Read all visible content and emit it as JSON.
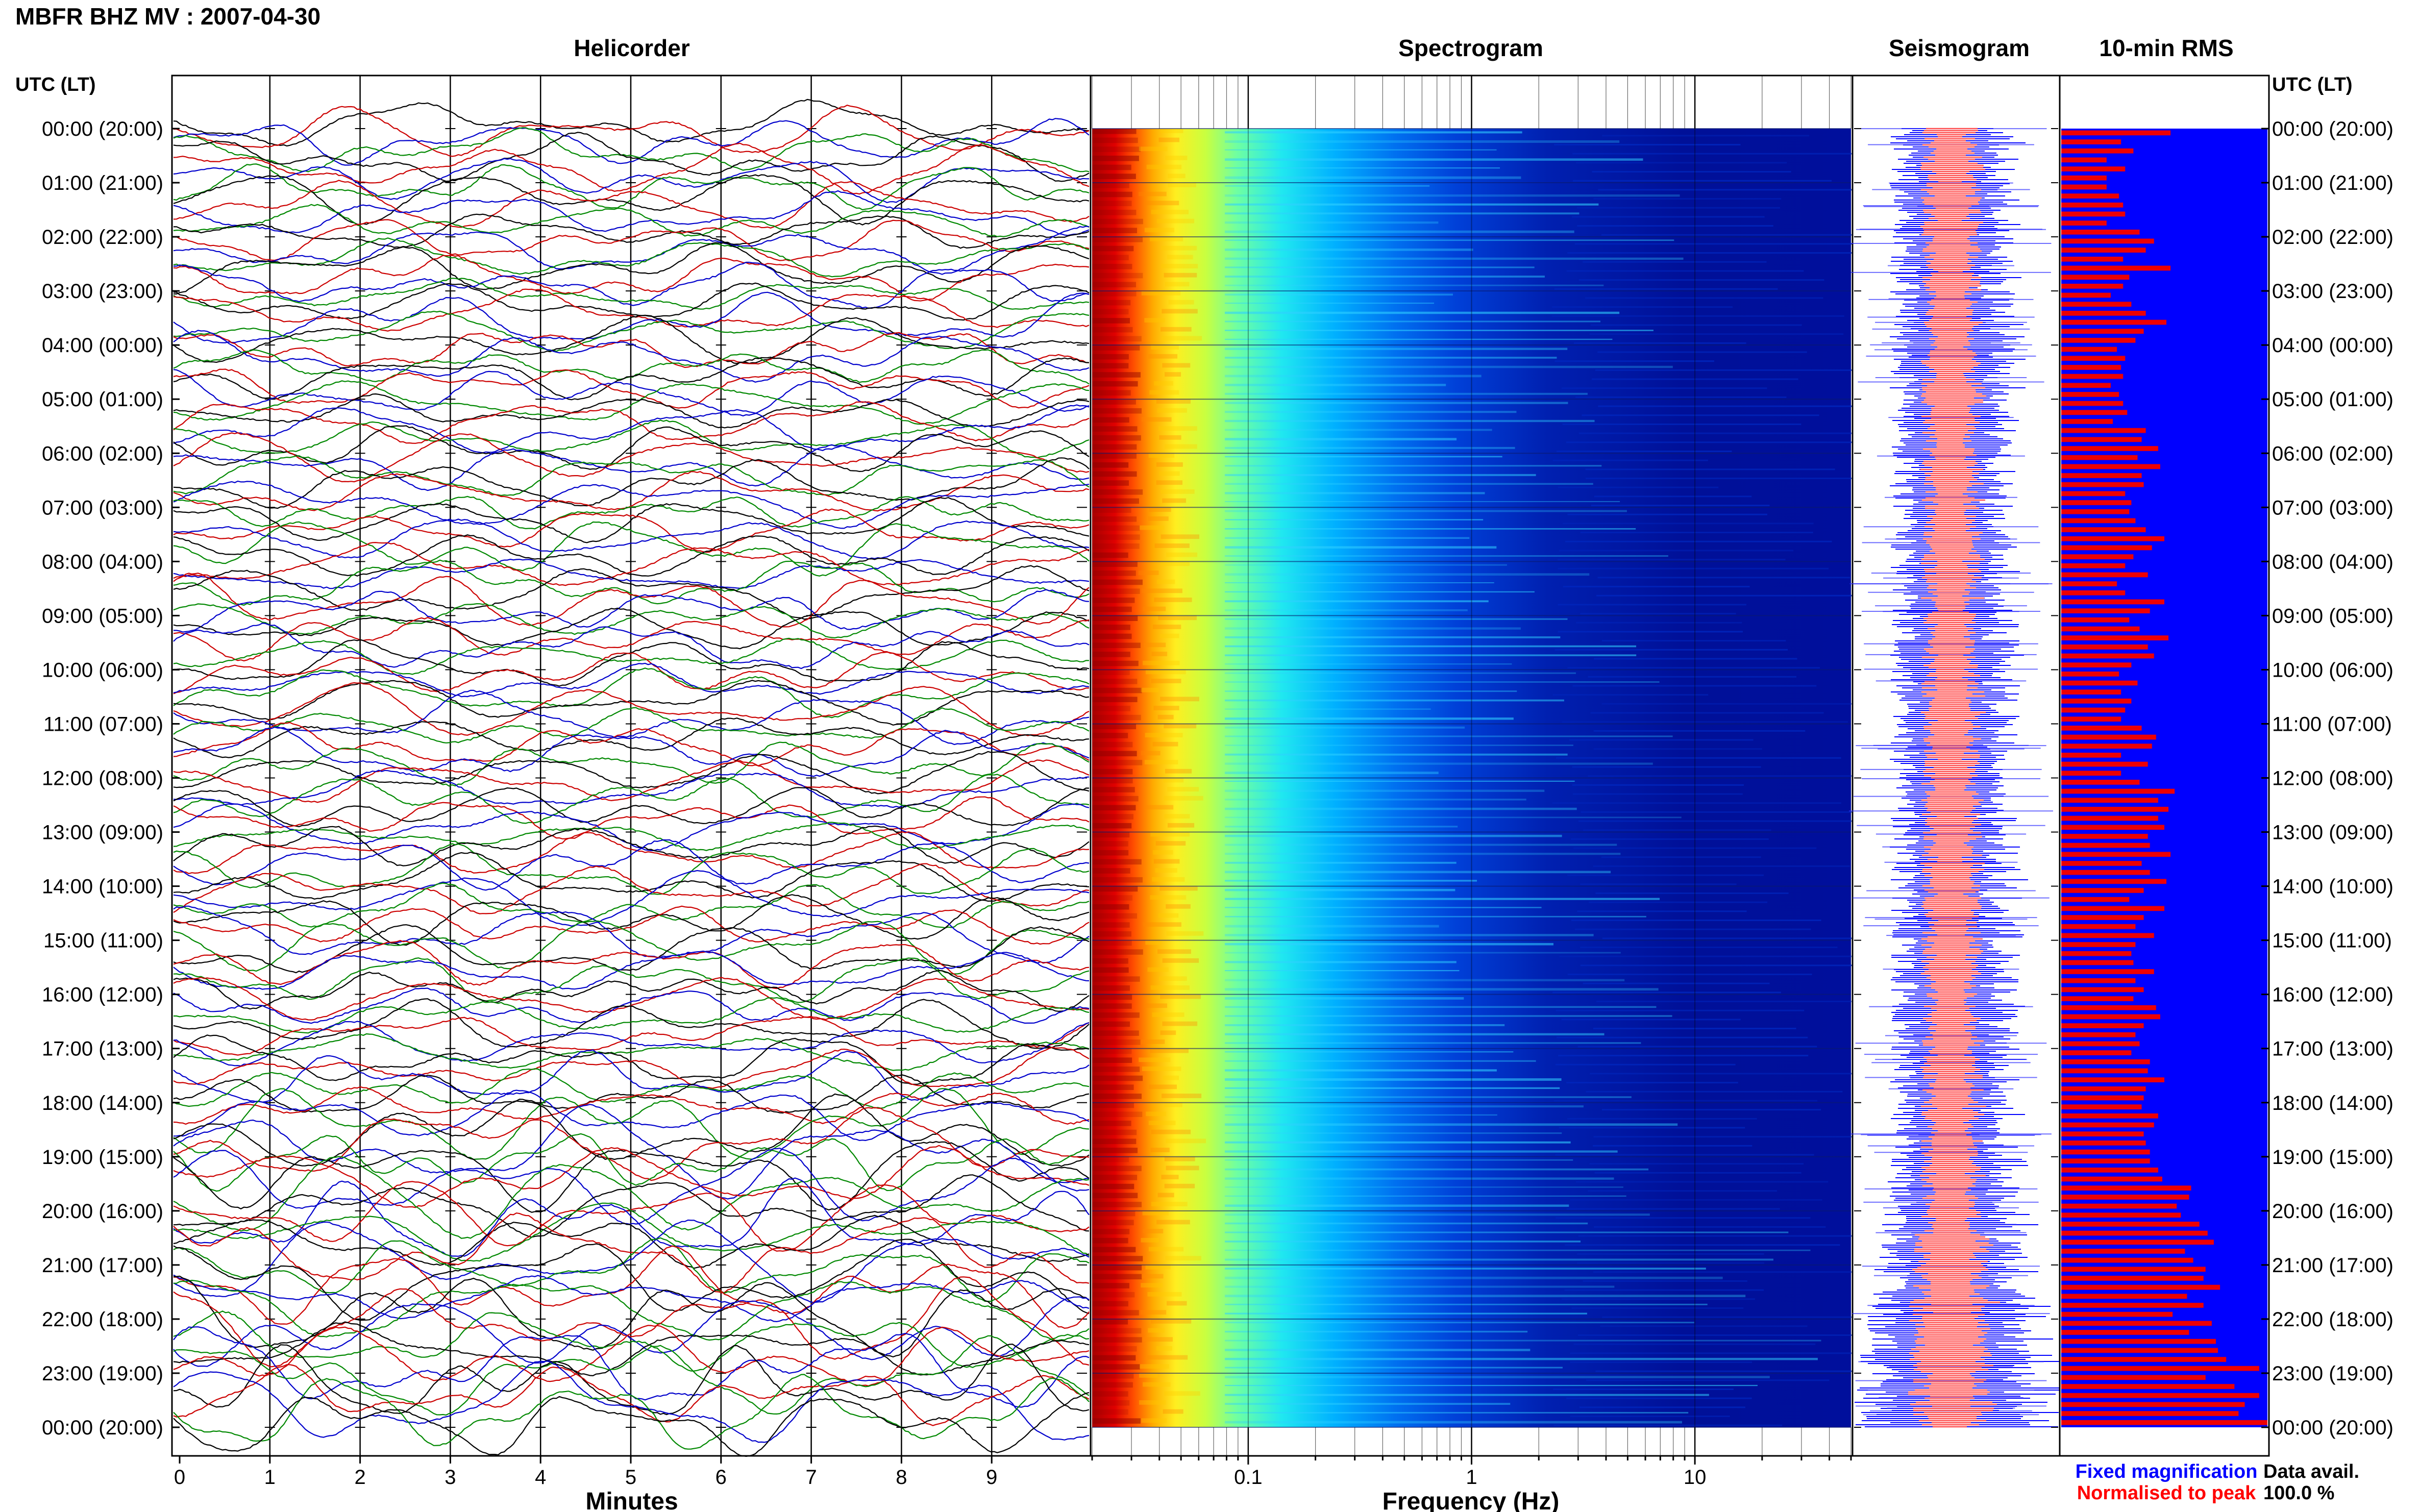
{
  "header": {
    "title": "MBFR BHZ MV : 2007-04-30",
    "utc_left": "UTC (LT)",
    "utc_right": "UTC (LT)"
  },
  "panels": {
    "helicorder": "Helicorder",
    "spectrogram": "Spectrogram",
    "seismogram": "Seismogram",
    "rms": "10-min RMS"
  },
  "time_labels": [
    "00:00 (20:00)",
    "01:00 (21:00)",
    "02:00 (22:00)",
    "03:00 (23:00)",
    "04:00 (00:00)",
    "05:00 (01:00)",
    "06:00 (02:00)",
    "07:00 (03:00)",
    "08:00 (04:00)",
    "09:00 (05:00)",
    "10:00 (06:00)",
    "11:00 (07:00)",
    "12:00 (08:00)",
    "13:00 (09:00)",
    "14:00 (10:00)",
    "15:00 (11:00)",
    "16:00 (12:00)",
    "17:00 (13:00)",
    "18:00 (14:00)",
    "19:00 (15:00)",
    "20:00 (16:00)",
    "21:00 (17:00)",
    "22:00 (18:00)",
    "23:00 (19:00)",
    "00:00 (20:00)"
  ],
  "legend": {
    "fixed": "Fixed magnification",
    "normalised": "Normalised to peak",
    "data_avail_label": "Data avail.",
    "data_avail_value": "100.0 %"
  },
  "colors": {
    "trace_colors": [
      "#000000",
      "#cc0000",
      "#0000cc",
      "#008800"
    ],
    "spectrogram_background": "#000f9c",
    "seismogram_fixed": "#0000ff",
    "seismogram_normalised": "#ff5050",
    "rms_background": "#0000ff",
    "rms_bar": "#ee0000"
  },
  "chart_data": [
    {
      "type": "line",
      "name": "helicorder",
      "title": "Helicorder",
      "xlabel": "Minutes",
      "xlim": [
        0,
        10
      ],
      "x_ticks": [
        "0",
        "1",
        "2",
        "3",
        "4",
        "5",
        "6",
        "7",
        "8",
        "9"
      ],
      "ylabel": "UTC (LT)",
      "rows": 144,
      "row_minutes": 10,
      "grid": true
    },
    {
      "type": "heatmap",
      "name": "spectrogram",
      "title": "Spectrogram",
      "xlabel": "Frequency (Hz)",
      "x_scale": "log",
      "xlim": [
        0.02,
        50
      ],
      "x_ticks": [
        "0.1",
        "1",
        "10"
      ]
    },
    {
      "type": "area",
      "name": "seismogram",
      "title": "Seismogram",
      "series": [
        {
          "name": "Fixed magnification"
        },
        {
          "name": "Normalised to peak"
        }
      ]
    },
    {
      "type": "bar",
      "name": "rms",
      "title": "10-min RMS",
      "orientation": "horizontal",
      "interval_minutes": 10,
      "relative_values": [
        0.53,
        0.29,
        0.35,
        0.22,
        0.31,
        0.22,
        0.22,
        0.28,
        0.3,
        0.31,
        0.22,
        0.38,
        0.45,
        0.41,
        0.3,
        0.53,
        0.33,
        0.3,
        0.24,
        0.34,
        0.41,
        0.51,
        0.4,
        0.36,
        0.27,
        0.31,
        0.29,
        0.3,
        0.24,
        0.28,
        0.3,
        0.32,
        0.25,
        0.41,
        0.39,
        0.47,
        0.37,
        0.48,
        0.39,
        0.4,
        0.31,
        0.34,
        0.33,
        0.36,
        0.41,
        0.5,
        0.44,
        0.35,
        0.31,
        0.42,
        0.27,
        0.31,
        0.5,
        0.43,
        0.33,
        0.38,
        0.52,
        0.42,
        0.45,
        0.34,
        0.28,
        0.37,
        0.29,
        0.34,
        0.31,
        0.29,
        0.39,
        0.46,
        0.44,
        0.29,
        0.42,
        0.29,
        0.38,
        0.55,
        0.47,
        0.52,
        0.47,
        0.5,
        0.42,
        0.43,
        0.53,
        0.39,
        0.43,
        0.51,
        0.4,
        0.33,
        0.5,
        0.4,
        0.36,
        0.45,
        0.36,
        0.34,
        0.35,
        0.45,
        0.36,
        0.4,
        0.35,
        0.46,
        0.48,
        0.4,
        0.36,
        0.38,
        0.34,
        0.43,
        0.42,
        0.5,
        0.41,
        0.4,
        0.39,
        0.47,
        0.45,
        0.4,
        0.41,
        0.43,
        0.43,
        0.47,
        0.49,
        0.63,
        0.62,
        0.56,
        0.58,
        0.67,
        0.71,
        0.74,
        0.6,
        0.64,
        0.7,
        0.69,
        0.77,
        0.61,
        0.69,
        0.54,
        0.73,
        0.62,
        0.75,
        0.76,
        0.8,
        0.96,
        0.7,
        0.84,
        0.96,
        0.89,
        0.86,
        1.0
      ]
    }
  ]
}
